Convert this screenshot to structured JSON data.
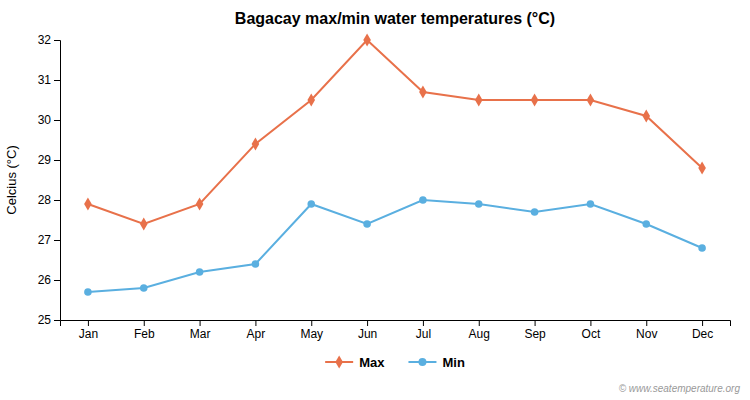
{
  "chart_data": {
    "type": "line",
    "title": "Bagacay max/min water temperatures (°C)",
    "ylabel": "Celcius (°C)",
    "categories": [
      "Jan",
      "Feb",
      "Mar",
      "Apr",
      "May",
      "Jun",
      "Jul",
      "Aug",
      "Sep",
      "Oct",
      "Nov",
      "Dec"
    ],
    "series": [
      {
        "name": "Max",
        "color": "#e8714a",
        "marker": "diamond",
        "values": [
          27.9,
          27.4,
          27.9,
          29.4,
          30.5,
          32.0,
          30.7,
          30.5,
          30.5,
          30.5,
          30.1,
          28.8
        ]
      },
      {
        "name": "Min",
        "color": "#5aafe0",
        "marker": "circle",
        "values": [
          25.7,
          25.8,
          26.2,
          26.4,
          27.9,
          27.4,
          28.0,
          27.9,
          27.7,
          27.9,
          27.4,
          26.8
        ]
      }
    ],
    "ylim": [
      25,
      32
    ],
    "yticks": [
      25,
      26,
      27,
      28,
      29,
      30,
      31,
      32
    ],
    "grid": false,
    "legend": "bottom",
    "annotations": [
      "© www.seatemperature.org"
    ]
  }
}
